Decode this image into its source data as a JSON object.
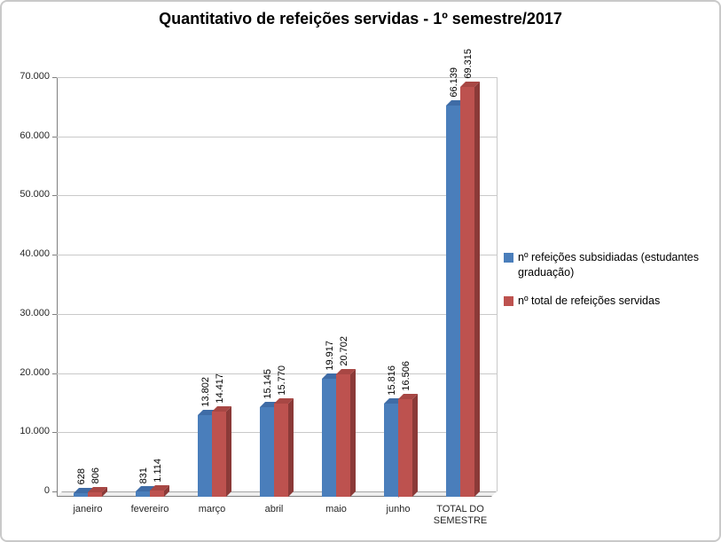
{
  "chart_data": {
    "type": "bar",
    "title": "Quantitativo de refeições servidas - 1º semestre/2017",
    "categories": [
      "janeiro",
      "fevereiro",
      "março",
      "abril",
      "maio",
      "junho",
      "TOTAL DO SEMESTRE"
    ],
    "series": [
      {
        "name": "nº refeições subsidiadas (estudantes graduação)",
        "color": "#4a7ebb",
        "side_color": "#2e5180",
        "top_color": "#3f6ca6",
        "values": [
          628,
          831,
          13802,
          15145,
          19917,
          15816,
          66139
        ],
        "value_labels": [
          "628",
          "831",
          "13.802",
          "15.145",
          "19.917",
          "15.816",
          "66.139"
        ]
      },
      {
        "name": "nº total de refeições servidas",
        "color": "#bd524f",
        "side_color": "#8b3a38",
        "top_color": "#a84744",
        "values": [
          806,
          1114,
          14417,
          15770,
          20702,
          16506,
          69315
        ],
        "value_labels": [
          "806",
          "1.114",
          "14.417",
          "15.770",
          "20.702",
          "16.506",
          "69.315"
        ]
      }
    ],
    "y_axis": {
      "min": 0,
      "max": 70000,
      "step": 10000,
      "tick_labels": [
        "0",
        "10.000",
        "20.000",
        "30.000",
        "40.000",
        "50.000",
        "60.000",
        "70.000"
      ]
    },
    "grid": true,
    "legend_position": "right",
    "effect": "3d"
  }
}
